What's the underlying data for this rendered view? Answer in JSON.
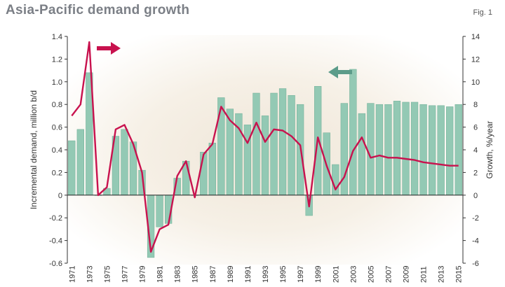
{
  "header": {
    "title": "Asia-Pacific demand growth",
    "fig_label": "Fig. 1"
  },
  "colors": {
    "bar": "#93c9b4",
    "bar_edge": "#6fae96",
    "line": "#c8124e",
    "bg_glow": "#e7dccd",
    "green_arrow": "#5c9c8a"
  },
  "chart_data": {
    "type": "bar",
    "years": [
      1971,
      1972,
      1973,
      1974,
      1975,
      1976,
      1977,
      1978,
      1979,
      1980,
      1981,
      1982,
      1983,
      1984,
      1985,
      1986,
      1987,
      1988,
      1989,
      1990,
      1991,
      1992,
      1993,
      1994,
      1995,
      1996,
      1997,
      1998,
      1999,
      2000,
      2001,
      2002,
      2003,
      2004,
      2005,
      2006,
      2007,
      2008,
      2009,
      2010,
      2011,
      2012,
      2013,
      2014,
      2015
    ],
    "x_tick_labels": [
      "1971",
      "1973",
      "1975",
      "1977",
      "1979",
      "1981",
      "1983",
      "1985",
      "1987",
      "1989",
      "1991",
      "1993",
      "1995",
      "1997",
      "1999",
      "2001",
      "2003",
      "2005",
      "2007",
      "2009",
      "2011",
      "2013",
      "2015"
    ],
    "series": [
      {
        "axis": "left",
        "kind": "bar",
        "values": [
          0.48,
          0.58,
          1.08,
          0.0,
          0.06,
          0.52,
          0.58,
          0.47,
          0.22,
          -0.55,
          -0.28,
          -0.25,
          0.15,
          0.3,
          0.0,
          0.38,
          0.46,
          0.86,
          0.76,
          0.72,
          0.62,
          0.9,
          0.7,
          0.9,
          0.94,
          0.88,
          0.8,
          -0.18,
          0.96,
          0.55,
          0.27,
          0.81,
          1.11,
          0.72,
          0.81,
          0.8,
          0.8,
          0.83,
          0.82,
          0.82,
          0.8,
          0.79,
          0.79,
          0.78,
          0.8
        ]
      },
      {
        "axis": "right",
        "kind": "line",
        "values": [
          7.0,
          8.0,
          13.5,
          0.0,
          0.7,
          5.8,
          6.2,
          4.5,
          2.0,
          -5.0,
          -3.0,
          -2.6,
          1.7,
          3.0,
          -0.2,
          3.6,
          4.5,
          7.8,
          6.6,
          5.9,
          4.6,
          6.4,
          4.7,
          5.8,
          5.7,
          5.2,
          4.4,
          -1.0,
          5.1,
          2.6,
          0.5,
          1.6,
          3.9,
          5.1,
          3.3,
          3.5,
          3.3,
          3.3,
          3.2,
          3.1,
          2.9,
          2.8,
          2.7,
          2.6,
          2.6
        ]
      }
    ],
    "y_left": {
      "label": "Incremental demand, million b/d",
      "min": -0.6,
      "max": 1.4,
      "ticks": [
        "-0.6",
        "-0.4",
        "-0.2",
        "0",
        "0.2",
        "0.4",
        "0.6",
        "0.8",
        "1.0",
        "1.2",
        "1.4"
      ]
    },
    "y_right": {
      "label": "Growth, %/year",
      "min": -6,
      "max": 14,
      "ticks": [
        "-6",
        "-4",
        "-2",
        "0",
        "2",
        "4",
        "6",
        "8",
        "10",
        "12",
        "14"
      ]
    },
    "grid": false
  }
}
